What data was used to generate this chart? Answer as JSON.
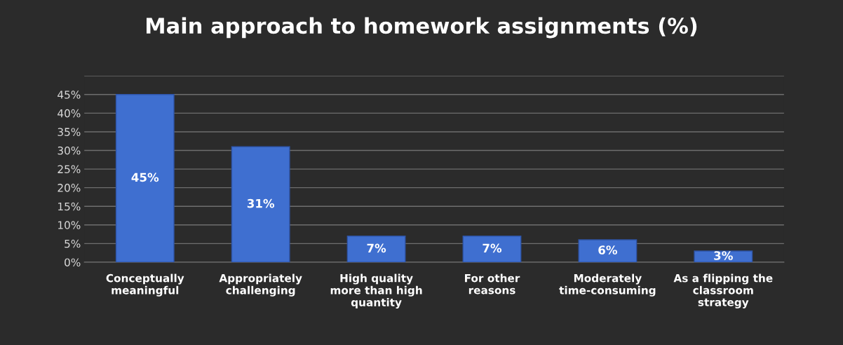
{
  "chart_data": {
    "type": "bar",
    "title": "Main approach to homework assignments (%)",
    "categories": [
      "Conceptually\nmeaningful",
      "Appropriately\nchallenging",
      "High quality\nmore than high\nquantity",
      "For other\nreasons",
      "Moderately\ntime-consuming",
      "As a flipping the\nclassroom\nstrategy"
    ],
    "values": [
      45,
      31,
      7,
      7,
      6,
      3
    ],
    "value_labels": [
      "45%",
      "31%",
      "7%",
      "7%",
      "6%",
      "3%"
    ],
    "color": "#3f6fd0",
    "ylim": [
      0,
      50
    ],
    "yticks": [
      {
        "value": 0,
        "label": "0%"
      },
      {
        "value": 5,
        "label": "5%"
      },
      {
        "value": 10,
        "label": "10%"
      },
      {
        "value": 15,
        "label": "15%"
      },
      {
        "value": 20,
        "label": "20%"
      },
      {
        "value": 25,
        "label": "25%"
      },
      {
        "value": 30,
        "label": "30%"
      },
      {
        "value": 35,
        "label": "35%"
      },
      {
        "value": 40,
        "label": "40%"
      },
      {
        "value": 45,
        "label": "45%"
      },
      {
        "value": 50,
        "label": null
      }
    ],
    "grid": "y",
    "legend": false
  }
}
